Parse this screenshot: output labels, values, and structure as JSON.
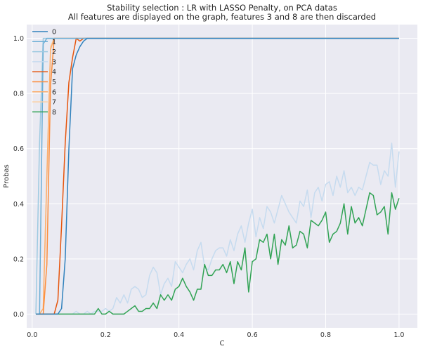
{
  "chart_data": {
    "type": "line",
    "title": "Stability selection : LR with LASSO Penalty, on PCA datas",
    "subtitle": "All features are displayed on the graph, features 3 and 8 are then discarded",
    "xlabel": "C",
    "ylabel": "Probas",
    "xlim": [
      -0.015,
      1.05
    ],
    "ylim": [
      -0.05,
      1.05
    ],
    "xticks": [
      0.0,
      0.2,
      0.4,
      0.6,
      0.8,
      1.0
    ],
    "xtick_labels": [
      "0.0",
      "0.2",
      "0.4",
      "0.6",
      "0.8",
      "1.0"
    ],
    "yticks": [
      0.0,
      0.2,
      0.4,
      0.6,
      0.8,
      1.0
    ],
    "ytick_labels": [
      "0.0",
      "0.2",
      "0.4",
      "0.6",
      "0.8",
      "1.0"
    ],
    "grid": true,
    "legend_position": "top-left",
    "background": "#eaeaf2",
    "series": [
      {
        "name": "0",
        "color": "#3182bd",
        "points": [
          [
            0.01,
            0
          ],
          [
            0.06,
            0
          ],
          [
            0.07,
            0
          ],
          [
            0.08,
            0.02
          ],
          [
            0.09,
            0.2
          ],
          [
            0.1,
            0.6
          ],
          [
            0.11,
            0.89
          ],
          [
            0.12,
            0.94
          ],
          [
            0.13,
            0.97
          ],
          [
            0.14,
            0.99
          ],
          [
            0.15,
            1
          ],
          [
            1.0,
            1
          ]
        ]
      },
      {
        "name": "1",
        "color": "#6baed6",
        "points": [
          [
            0.01,
            0
          ],
          [
            0.02,
            0
          ],
          [
            0.03,
            0.98
          ],
          [
            0.04,
            1
          ],
          [
            1.0,
            1
          ]
        ]
      },
      {
        "name": "2",
        "color": "#9ecae1",
        "points": [
          [
            0.01,
            0
          ],
          [
            0.02,
            0.62
          ],
          [
            0.03,
            1
          ],
          [
            1.0,
            1
          ]
        ]
      },
      {
        "name": "3",
        "color": "#c6dbef",
        "points": [
          [
            0.01,
            0
          ],
          [
            0.02,
            0
          ],
          [
            0.03,
            0
          ],
          [
            0.04,
            0
          ],
          [
            0.05,
            0
          ],
          [
            0.06,
            0
          ],
          [
            0.07,
            0
          ],
          [
            0.08,
            0
          ],
          [
            0.09,
            0
          ],
          [
            0.1,
            0
          ],
          [
            0.11,
            0
          ],
          [
            0.12,
            0.01
          ],
          [
            0.13,
            0
          ],
          [
            0.14,
            0
          ],
          [
            0.15,
            0.01
          ],
          [
            0.16,
            0
          ],
          [
            0.17,
            0.01
          ],
          [
            0.18,
            0.01
          ],
          [
            0.19,
            0.01
          ],
          [
            0.2,
            0.02
          ],
          [
            0.21,
            0.01
          ],
          [
            0.22,
            0.02
          ],
          [
            0.23,
            0.06
          ],
          [
            0.24,
            0.04
          ],
          [
            0.25,
            0.07
          ],
          [
            0.26,
            0.04
          ],
          [
            0.27,
            0.09
          ],
          [
            0.28,
            0.1
          ],
          [
            0.29,
            0.09
          ],
          [
            0.3,
            0.06
          ],
          [
            0.31,
            0.07
          ],
          [
            0.32,
            0.14
          ],
          [
            0.33,
            0.17
          ],
          [
            0.34,
            0.15
          ],
          [
            0.35,
            0.07
          ],
          [
            0.36,
            0.11
          ],
          [
            0.37,
            0.13
          ],
          [
            0.38,
            0.1
          ],
          [
            0.39,
            0.19
          ],
          [
            0.4,
            0.17
          ],
          [
            0.41,
            0.15
          ],
          [
            0.42,
            0.18
          ],
          [
            0.43,
            0.2
          ],
          [
            0.44,
            0.16
          ],
          [
            0.45,
            0.23
          ],
          [
            0.46,
            0.26
          ],
          [
            0.47,
            0.17
          ],
          [
            0.48,
            0.16
          ],
          [
            0.49,
            0.2
          ],
          [
            0.5,
            0.23
          ],
          [
            0.51,
            0.24
          ],
          [
            0.52,
            0.24
          ],
          [
            0.53,
            0.21
          ],
          [
            0.54,
            0.27
          ],
          [
            0.55,
            0.23
          ],
          [
            0.56,
            0.29
          ],
          [
            0.57,
            0.32
          ],
          [
            0.58,
            0.26
          ],
          [
            0.59,
            0.33
          ],
          [
            0.6,
            0.38
          ],
          [
            0.61,
            0.28
          ],
          [
            0.62,
            0.35
          ],
          [
            0.63,
            0.31
          ],
          [
            0.64,
            0.39
          ],
          [
            0.65,
            0.37
          ],
          [
            0.66,
            0.33
          ],
          [
            0.67,
            0.38
          ],
          [
            0.68,
            0.43
          ],
          [
            0.69,
            0.4
          ],
          [
            0.7,
            0.37
          ],
          [
            0.71,
            0.35
          ],
          [
            0.72,
            0.33
          ],
          [
            0.73,
            0.41
          ],
          [
            0.74,
            0.39
          ],
          [
            0.75,
            0.45
          ],
          [
            0.76,
            0.35
          ],
          [
            0.77,
            0.44
          ],
          [
            0.78,
            0.46
          ],
          [
            0.79,
            0.41
          ],
          [
            0.8,
            0.47
          ],
          [
            0.81,
            0.48
          ],
          [
            0.82,
            0.43
          ],
          [
            0.83,
            0.5
          ],
          [
            0.84,
            0.46
          ],
          [
            0.85,
            0.52
          ],
          [
            0.86,
            0.44
          ],
          [
            0.87,
            0.46
          ],
          [
            0.88,
            0.43
          ],
          [
            0.89,
            0.46
          ],
          [
            0.9,
            0.45
          ],
          [
            0.91,
            0.5
          ],
          [
            0.92,
            0.55
          ],
          [
            0.93,
            0.54
          ],
          [
            0.94,
            0.54
          ],
          [
            0.95,
            0.47
          ],
          [
            0.96,
            0.52
          ],
          [
            0.97,
            0.5
          ],
          [
            0.98,
            0.62
          ],
          [
            0.99,
            0.46
          ],
          [
            1.0,
            0.59
          ]
        ]
      },
      {
        "name": "4",
        "color": "#e6550d",
        "points": [
          [
            0.01,
            0
          ],
          [
            0.06,
            0
          ],
          [
            0.07,
            0.05
          ],
          [
            0.08,
            0.32
          ],
          [
            0.09,
            0.62
          ],
          [
            0.1,
            0.84
          ],
          [
            0.11,
            0.93
          ],
          [
            0.12,
            1
          ],
          [
            0.13,
            0.99
          ],
          [
            0.14,
            1
          ],
          [
            1.0,
            1
          ]
        ]
      },
      {
        "name": "5",
        "color": "#fd8d3c",
        "points": [
          [
            0.01,
            0
          ],
          [
            0.03,
            0
          ],
          [
            0.04,
            0.18
          ],
          [
            0.05,
            0.83
          ],
          [
            0.06,
            1
          ],
          [
            1.0,
            1
          ]
        ]
      },
      {
        "name": "6",
        "color": "#fdae6b",
        "points": [
          [
            0.01,
            0
          ],
          [
            0.02,
            0
          ],
          [
            0.03,
            0.02
          ],
          [
            0.04,
            0.5
          ],
          [
            0.05,
            0.96
          ],
          [
            0.06,
            1
          ],
          [
            1.0,
            1
          ]
        ]
      },
      {
        "name": "7",
        "color": "#fdd0a2",
        "points": [
          [
            0.01,
            0
          ],
          [
            0.02,
            0
          ],
          [
            0.03,
            0.02
          ],
          [
            0.04,
            0.5
          ],
          [
            0.05,
            0.97
          ],
          [
            0.06,
            1
          ],
          [
            1.0,
            1
          ]
        ]
      },
      {
        "name": "8",
        "color": "#31a354",
        "points": [
          [
            0.01,
            0
          ],
          [
            0.17,
            0
          ],
          [
            0.18,
            0.02
          ],
          [
            0.19,
            0
          ],
          [
            0.2,
            0
          ],
          [
            0.21,
            0.01
          ],
          [
            0.22,
            0
          ],
          [
            0.23,
            0
          ],
          [
            0.24,
            0
          ],
          [
            0.25,
            0
          ],
          [
            0.26,
            0.01
          ],
          [
            0.27,
            0.02
          ],
          [
            0.28,
            0.03
          ],
          [
            0.29,
            0.01
          ],
          [
            0.3,
            0.01
          ],
          [
            0.31,
            0.02
          ],
          [
            0.32,
            0.02
          ],
          [
            0.33,
            0.04
          ],
          [
            0.34,
            0.02
          ],
          [
            0.35,
            0.07
          ],
          [
            0.36,
            0.05
          ],
          [
            0.37,
            0.07
          ],
          [
            0.38,
            0.05
          ],
          [
            0.39,
            0.09
          ],
          [
            0.4,
            0.1
          ],
          [
            0.41,
            0.13
          ],
          [
            0.42,
            0.1
          ],
          [
            0.43,
            0.08
          ],
          [
            0.44,
            0.05
          ],
          [
            0.45,
            0.09
          ],
          [
            0.46,
            0.09
          ],
          [
            0.47,
            0.18
          ],
          [
            0.48,
            0.14
          ],
          [
            0.49,
            0.14
          ],
          [
            0.5,
            0.16
          ],
          [
            0.51,
            0.16
          ],
          [
            0.52,
            0.18
          ],
          [
            0.53,
            0.15
          ],
          [
            0.54,
            0.19
          ],
          [
            0.55,
            0.11
          ],
          [
            0.56,
            0.19
          ],
          [
            0.57,
            0.16
          ],
          [
            0.58,
            0.24
          ],
          [
            0.59,
            0.08
          ],
          [
            0.6,
            0.19
          ],
          [
            0.61,
            0.2
          ],
          [
            0.62,
            0.27
          ],
          [
            0.63,
            0.26
          ],
          [
            0.64,
            0.29
          ],
          [
            0.65,
            0.2
          ],
          [
            0.66,
            0.29
          ],
          [
            0.67,
            0.18
          ],
          [
            0.68,
            0.27
          ],
          [
            0.69,
            0.25
          ],
          [
            0.7,
            0.32
          ],
          [
            0.71,
            0.24
          ],
          [
            0.72,
            0.25
          ],
          [
            0.73,
            0.3
          ],
          [
            0.74,
            0.29
          ],
          [
            0.75,
            0.24
          ],
          [
            0.76,
            0.34
          ],
          [
            0.77,
            0.33
          ],
          [
            0.78,
            0.32
          ],
          [
            0.79,
            0.34
          ],
          [
            0.8,
            0.37
          ],
          [
            0.81,
            0.26
          ],
          [
            0.82,
            0.29
          ],
          [
            0.83,
            0.3
          ],
          [
            0.84,
            0.33
          ],
          [
            0.85,
            0.4
          ],
          [
            0.86,
            0.29
          ],
          [
            0.87,
            0.39
          ],
          [
            0.88,
            0.33
          ],
          [
            0.89,
            0.35
          ],
          [
            0.9,
            0.32
          ],
          [
            0.91,
            0.38
          ],
          [
            0.92,
            0.44
          ],
          [
            0.93,
            0.43
          ],
          [
            0.94,
            0.36
          ],
          [
            0.95,
            0.37
          ],
          [
            0.96,
            0.39
          ],
          [
            0.97,
            0.29
          ],
          [
            0.98,
            0.44
          ],
          [
            0.99,
            0.38
          ],
          [
            1.0,
            0.42
          ]
        ]
      }
    ]
  }
}
